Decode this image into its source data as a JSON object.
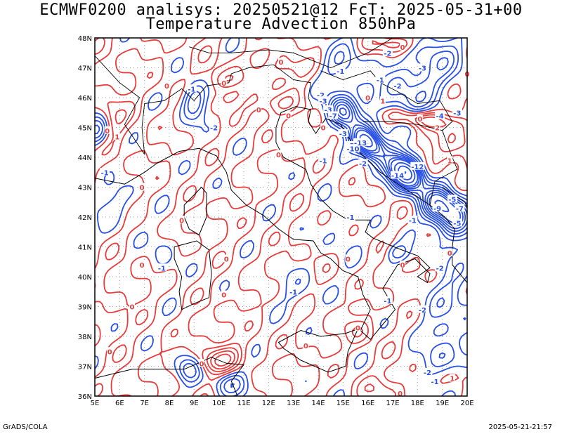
{
  "title_line1": "ECMWF0200 analisys: 20250521@12 FcT: 2025-05-31+00",
  "title_line2": "Temperature Advection 850hPa",
  "footer_left": "GrADS/COLA",
  "footer_right": "2025-05-21-21:57",
  "map": {
    "lon_labels": [
      "5E",
      "6E",
      "7E",
      "8E",
      "9E",
      "10E",
      "11E",
      "12E",
      "13E",
      "14E",
      "15E",
      "16E",
      "17E",
      "18E",
      "19E",
      "20E"
    ],
    "lat_labels": [
      "48N",
      "47N",
      "46N",
      "45N",
      "44N",
      "43N",
      "42N",
      "41N",
      "40N",
      "39N",
      "38N",
      "37N",
      "36N"
    ],
    "lon_range": [
      5,
      20
    ],
    "lat_range": [
      36,
      48
    ],
    "grid": "dotted",
    "colors": {
      "positive_contour": "#e83c3c",
      "negative_contour": "#2850e6",
      "coastline": "#000000",
      "grid": "#a0a0a0"
    }
  },
  "contour_labels": [
    {
      "text": "-2",
      "lon": 16.8,
      "lat": 47.5,
      "color": "neg"
    },
    {
      "text": "-1",
      "lon": 14.9,
      "lat": 46.9,
      "color": "neg"
    },
    {
      "text": "-1",
      "lon": 16.5,
      "lat": 46.6,
      "color": "neg"
    },
    {
      "text": "-3",
      "lon": 18.2,
      "lat": 47.0,
      "color": "neg"
    },
    {
      "text": "-2",
      "lon": 17.2,
      "lat": 46.4,
      "color": "neg"
    },
    {
      "text": "-2",
      "lon": 14.1,
      "lat": 46.1,
      "color": "neg"
    },
    {
      "text": "-3",
      "lon": 14.2,
      "lat": 45.9,
      "color": "neg"
    },
    {
      "text": "-3",
      "lon": 14.4,
      "lat": 45.6,
      "color": "neg"
    },
    {
      "text": "-7",
      "lon": 14.6,
      "lat": 45.4,
      "color": "neg"
    },
    {
      "text": "-3",
      "lon": 15.0,
      "lat": 44.8,
      "color": "neg"
    },
    {
      "text": "-5",
      "lon": 15.3,
      "lat": 44.4,
      "color": "neg"
    },
    {
      "text": "-10",
      "lon": 15.4,
      "lat": 44.3,
      "color": "neg"
    },
    {
      "text": "-13",
      "lon": 15.7,
      "lat": 44.5,
      "color": "neg"
    },
    {
      "text": "-2",
      "lon": 15.8,
      "lat": 43.8,
      "color": "neg"
    },
    {
      "text": "-14",
      "lon": 17.2,
      "lat": 43.4,
      "color": "neg"
    },
    {
      "text": "-12",
      "lon": 18.0,
      "lat": 43.7,
      "color": "neg"
    },
    {
      "text": "-5",
      "lon": 19.4,
      "lat": 42.6,
      "color": "neg"
    },
    {
      "text": "-9",
      "lon": 18.8,
      "lat": 42.3,
      "color": "neg"
    },
    {
      "text": "-7",
      "lon": 19.7,
      "lat": 42.3,
      "color": "neg"
    },
    {
      "text": "-5",
      "lon": 19.6,
      "lat": 41.8,
      "color": "neg"
    },
    {
      "text": "-1",
      "lon": 17.8,
      "lat": 41.9,
      "color": "neg"
    },
    {
      "text": "-1",
      "lon": 15.3,
      "lat": 42.0,
      "color": "neg"
    },
    {
      "text": "-3",
      "lon": 19.6,
      "lat": 45.5,
      "color": "neg"
    },
    {
      "text": "-4",
      "lon": 18.9,
      "lat": 45.4,
      "color": "neg"
    },
    {
      "text": "-1",
      "lon": 8.9,
      "lat": 46.3,
      "color": "neg"
    },
    {
      "text": "-2",
      "lon": 9.8,
      "lat": 45.0,
      "color": "neg"
    },
    {
      "text": "-1",
      "lon": 5.4,
      "lat": 43.5,
      "color": "neg"
    },
    {
      "text": "-1",
      "lon": 7.7,
      "lat": 40.3,
      "color": "neg"
    },
    {
      "text": "-1",
      "lon": 13.0,
      "lat": 39.5,
      "color": "neg"
    },
    {
      "text": "-1",
      "lon": 14.2,
      "lat": 43.9,
      "color": "neg"
    },
    {
      "text": "-2",
      "lon": 18.9,
      "lat": 40.3,
      "color": "neg"
    },
    {
      "text": "-1",
      "lon": 16.8,
      "lat": 39.2,
      "color": "neg"
    },
    {
      "text": "-2",
      "lon": 18.2,
      "lat": 38.9,
      "color": "neg"
    },
    {
      "text": "-2",
      "lon": 18.4,
      "lat": 36.8,
      "color": "neg"
    },
    {
      "text": "-1",
      "lon": 18.7,
      "lat": 36.5,
      "color": "neg"
    },
    {
      "text": "0",
      "lon": 17.4,
      "lat": 47.7,
      "color": "pos"
    },
    {
      "text": "0",
      "lon": 12.5,
      "lat": 47.2,
      "color": "pos"
    },
    {
      "text": "0",
      "lon": 18.1,
      "lat": 45.3,
      "color": "pos"
    },
    {
      "text": "2",
      "lon": 18.8,
      "lat": 45.0,
      "color": "pos"
    },
    {
      "text": "1",
      "lon": 19.3,
      "lat": 43.9,
      "color": "pos"
    },
    {
      "text": "0",
      "lon": 5.5,
      "lat": 44.9,
      "color": "pos"
    },
    {
      "text": "0",
      "lon": 10.2,
      "lat": 46.5,
      "color": "pos"
    },
    {
      "text": "0",
      "lon": 11.6,
      "lat": 45.6,
      "color": "pos"
    },
    {
      "text": "0",
      "lon": 12.8,
      "lat": 45.4,
      "color": "pos"
    },
    {
      "text": "0",
      "lon": 14.2,
      "lat": 45.0,
      "color": "pos"
    },
    {
      "text": "0",
      "lon": 6.9,
      "lat": 43.0,
      "color": "pos"
    },
    {
      "text": "0",
      "lon": 12.4,
      "lat": 44.1,
      "color": "pos"
    },
    {
      "text": "0",
      "lon": 8.5,
      "lat": 41.9,
      "color": "pos"
    },
    {
      "text": "0",
      "lon": 6.9,
      "lat": 40.4,
      "color": "pos"
    },
    {
      "text": "0",
      "lon": 10.3,
      "lat": 40.6,
      "color": "pos"
    },
    {
      "text": "0",
      "lon": 6.5,
      "lat": 39.0,
      "color": "pos"
    },
    {
      "text": "0",
      "lon": 10.2,
      "lat": 39.4,
      "color": "pos"
    },
    {
      "text": "0",
      "lon": 9.3,
      "lat": 37.1,
      "color": "pos"
    },
    {
      "text": "0",
      "lon": 5.6,
      "lat": 37.5,
      "color": "pos"
    },
    {
      "text": "1",
      "lon": 5.9,
      "lat": 44.7,
      "color": "pos"
    },
    {
      "text": "0",
      "lon": 17.4,
      "lat": 40.4,
      "color": "pos"
    },
    {
      "text": "0",
      "lon": 15.2,
      "lat": 40.6,
      "color": "pos"
    },
    {
      "text": "0",
      "lon": 19.3,
      "lat": 40.8,
      "color": "pos"
    },
    {
      "text": "0",
      "lon": 17.3,
      "lat": 36.1,
      "color": "pos"
    },
    {
      "text": "1",
      "lon": 19.4,
      "lat": 36.6,
      "color": "pos"
    },
    {
      "text": "0",
      "lon": 7.9,
      "lat": 46.4,
      "color": "pos"
    },
    {
      "text": "0",
      "lon": 15.6,
      "lat": 38.3,
      "color": "pos"
    },
    {
      "text": "0",
      "lon": 13.5,
      "lat": 37.7,
      "color": "pos"
    },
    {
      "text": "0",
      "lon": 16.0,
      "lat": 46.0,
      "color": "pos"
    },
    {
      "text": "1",
      "lon": 16.6,
      "lat": 45.9,
      "color": "pos"
    },
    {
      "text": "0",
      "lon": 20.0,
      "lat": 46.8,
      "color": "pos"
    }
  ]
}
